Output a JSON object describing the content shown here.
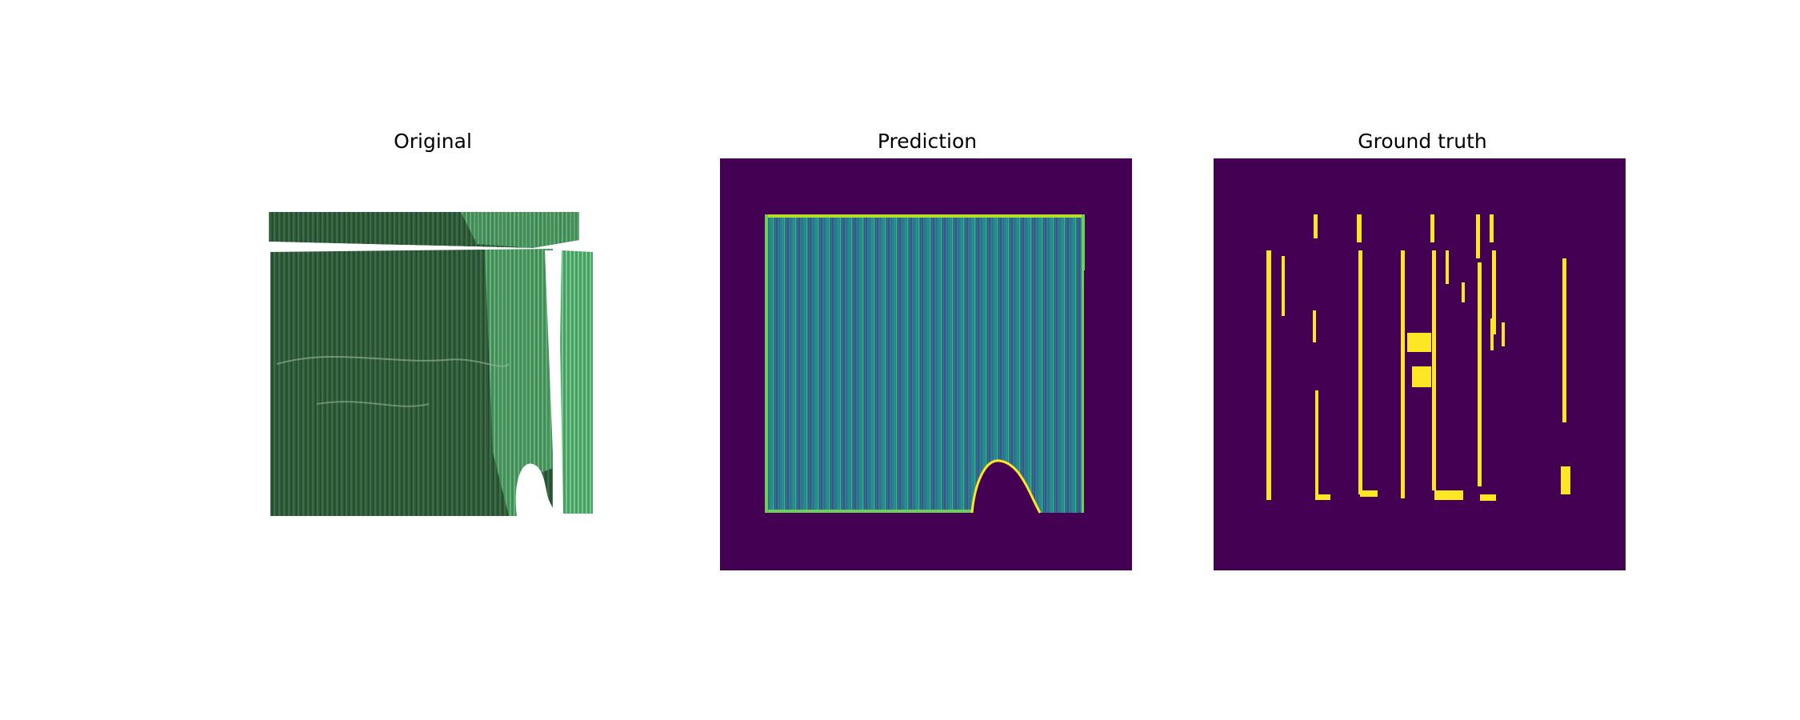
{
  "figure": {
    "panels": [
      {
        "id": "original",
        "title": "Original"
      },
      {
        "id": "prediction",
        "title": "Prediction"
      },
      {
        "id": "ground_truth",
        "title": "Ground truth"
      }
    ]
  },
  "colors": {
    "background": "#ffffff",
    "viridis_dark": "#440154",
    "viridis_teal": "#21918c",
    "viridis_blue": "#3b528b",
    "viridis_green": "#5ec962",
    "viridis_yellow": "#fde725",
    "field_dark_green": "#2f5a3a",
    "field_light_green": "#6fcf8a"
  }
}
